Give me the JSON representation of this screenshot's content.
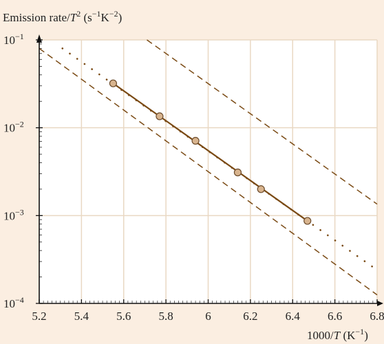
{
  "chart_data": {
    "type": "scatter",
    "ylabel": {
      "prefix": "Emission rate/",
      "var": "T",
      "exp": "2",
      "units": " (s",
      "u1exp": "−1",
      "u2": "K",
      "u2exp": "−2",
      "close": ")"
    },
    "xlabel": {
      "prefix": "1000/",
      "var": "T",
      "units": " (K",
      "exp": "−1",
      "close": ")"
    },
    "xlim": [
      5.2,
      6.8
    ],
    "ylim": [
      0.0001,
      0.1
    ],
    "y_scale": "log",
    "grid": true,
    "x_ticks": [
      {
        "value": 5.2,
        "label": "5.2"
      },
      {
        "value": 5.4,
        "label": "5.4"
      },
      {
        "value": 5.6,
        "label": "5.6"
      },
      {
        "value": 5.8,
        "label": "5.8"
      },
      {
        "value": 6.0,
        "label": "6"
      },
      {
        "value": 6.2,
        "label": "6.2"
      },
      {
        "value": 6.4,
        "label": "6.4"
      },
      {
        "value": 6.6,
        "label": "6.6"
      },
      {
        "value": 6.8,
        "label": "6.8"
      }
    ],
    "y_ticks": [
      {
        "value": 0.1,
        "base": "10",
        "exp": "−1"
      },
      {
        "value": 0.01,
        "base": "10",
        "exp": "−2"
      },
      {
        "value": 0.001,
        "base": "10",
        "exp": "−3"
      },
      {
        "value": 0.0001,
        "base": "10",
        "exp": "−4"
      }
    ],
    "series": [
      {
        "style": "points-with-fit",
        "color": "#7a4a14",
        "points": [
          {
            "x": 5.55,
            "y": 0.032
          },
          {
            "x": 5.77,
            "y": 0.0135
          },
          {
            "x": 5.94,
            "y": 0.0071
          },
          {
            "x": 6.14,
            "y": 0.0031
          },
          {
            "x": 6.25,
            "y": 0.002
          },
          {
            "x": 6.47,
            "y": 0.00087
          }
        ]
      },
      {
        "style": "dotted",
        "color": "#7a4a14",
        "points": [
          {
            "x": 5.31,
            "y": 0.08
          },
          {
            "x": 6.8,
            "y": 0.00024
          }
        ]
      },
      {
        "style": "dashed",
        "color": "#7a4a14",
        "points": [
          {
            "x": 5.71,
            "y": 0.1
          },
          {
            "x": 6.8,
            "y": 0.00135
          }
        ]
      },
      {
        "style": "dashed",
        "color": "#7a4a14",
        "points": [
          {
            "x": 5.2,
            "y": 0.08
          },
          {
            "x": 6.8,
            "y": 0.000125
          }
        ]
      }
    ],
    "colors": {
      "background": "#fbeee1",
      "plot_bg": "#ffffff",
      "grid": "#e9d8c3",
      "marker_fill": "#d8b48e",
      "marker_stroke": "#6b4a2a"
    }
  }
}
